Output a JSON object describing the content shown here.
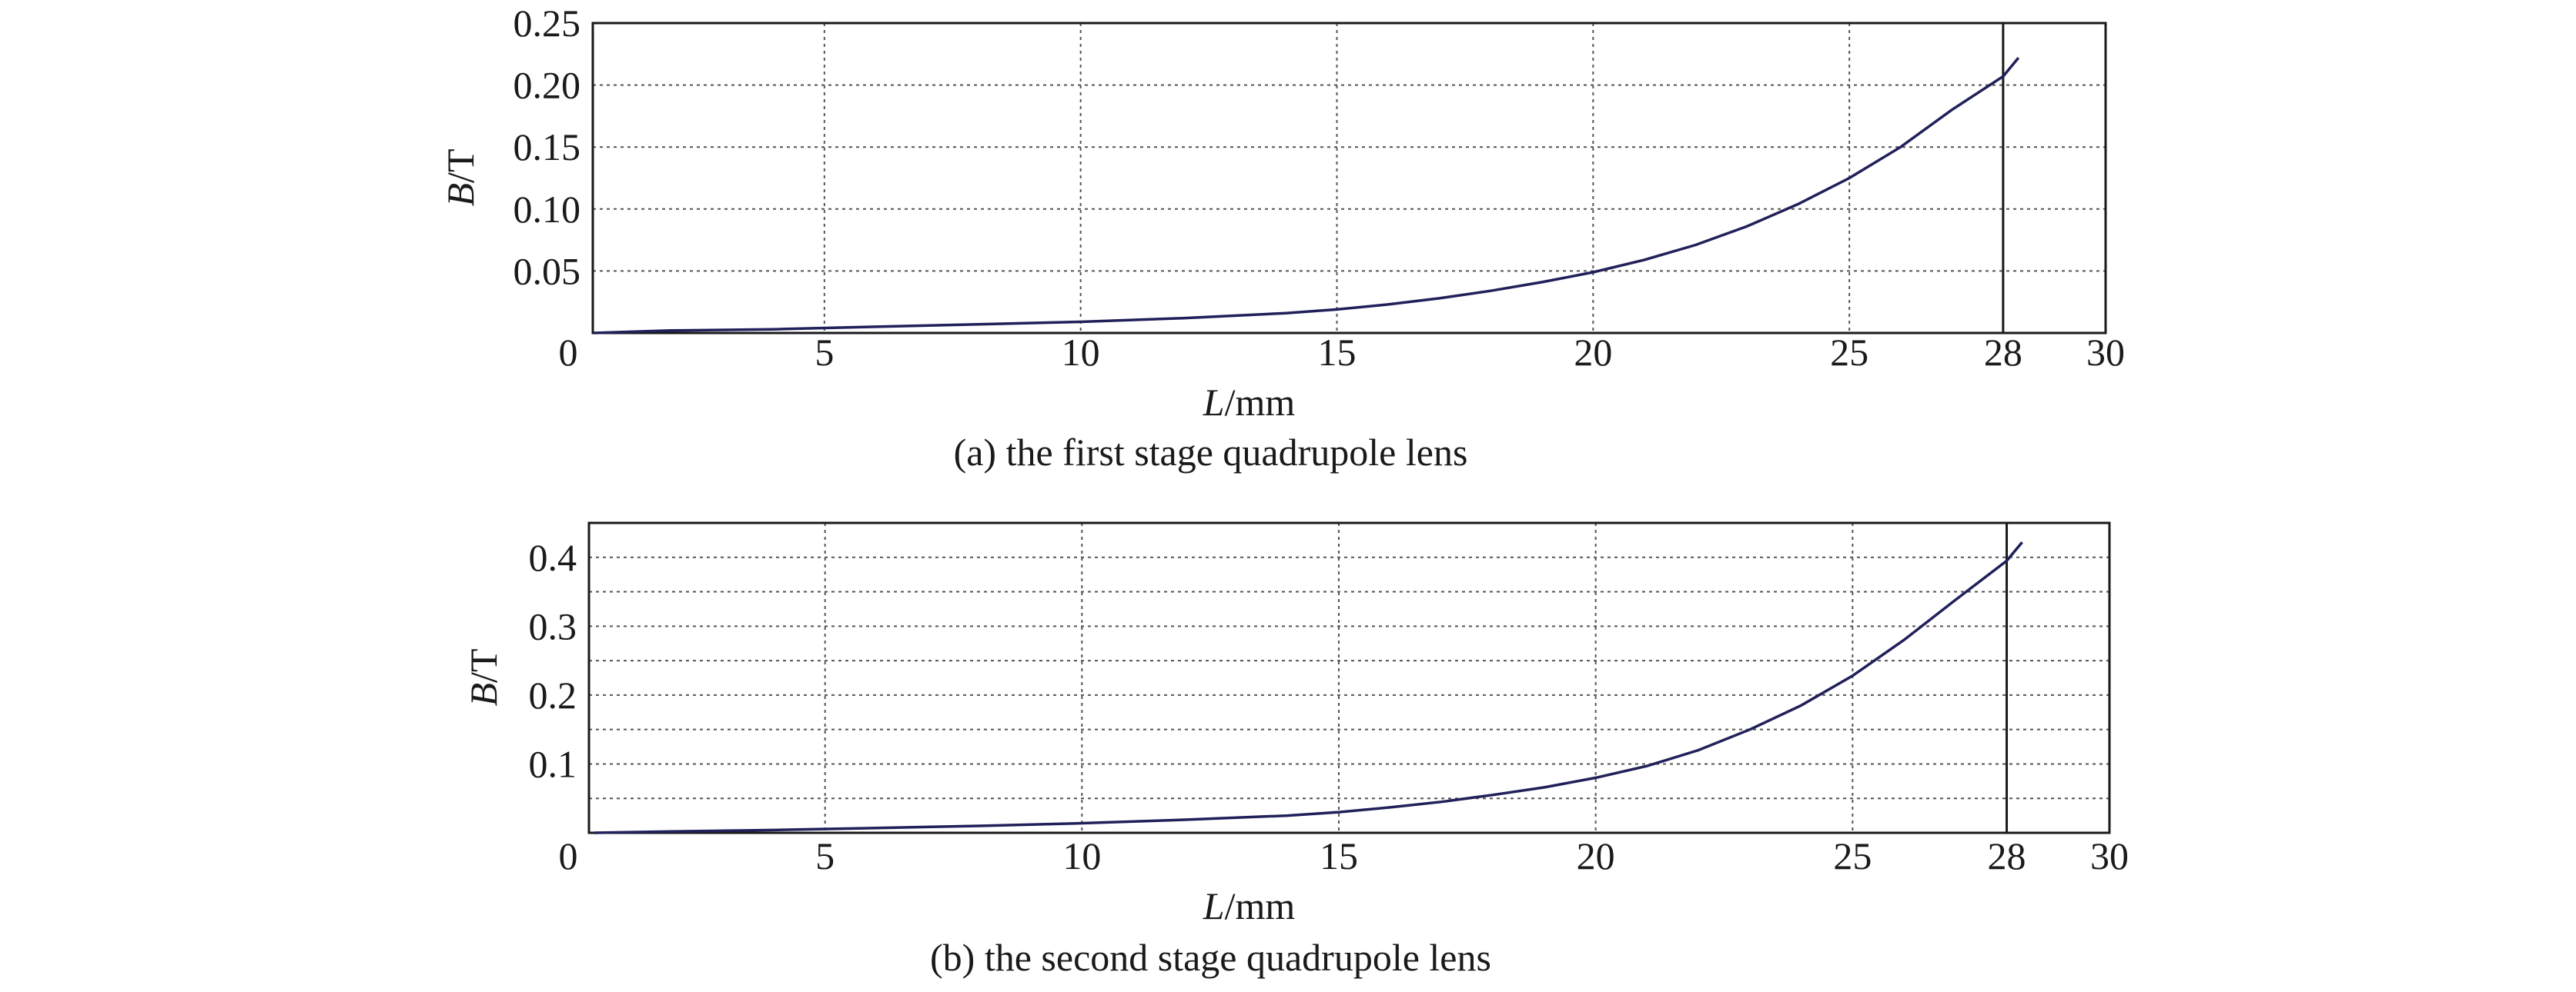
{
  "chart_data": [
    {
      "type": "line",
      "caption": "(a) the first stage quadrupole lens",
      "xlabel": {
        "var": "L",
        "unit": "/mm"
      },
      "ylabel": {
        "var": "B",
        "unit": "/T"
      },
      "xlim": [
        0,
        30
      ],
      "ylim": [
        0,
        0.25
      ],
      "x_ticks": [
        0,
        5,
        10,
        15,
        20,
        25,
        28,
        30
      ],
      "x_tick_labels": [
        "0",
        "5",
        "10",
        "15",
        "20",
        "25",
        "28",
        "30"
      ],
      "x_gridlines": [
        5,
        10,
        15,
        20,
        25
      ],
      "y_ticks": [
        0.05,
        0.1,
        0.15,
        0.2,
        0.25
      ],
      "y_tick_labels": [
        "0.05",
        "0.10",
        "0.15",
        "0.20",
        "0.25"
      ],
      "y_gridlines": [
        0.05,
        0.1,
        0.15,
        0.2
      ],
      "vertical_marker": 28,
      "grid": true,
      "series": [
        {
          "color": "#20205a",
          "x": [
            0.5,
            2,
            4,
            6,
            8,
            10,
            12,
            14,
            15,
            16,
            17,
            18,
            19,
            20,
            21,
            22,
            23,
            24,
            25,
            26,
            27,
            28,
            28.3
          ],
          "y": [
            0.0,
            0.002,
            0.003,
            0.005,
            0.007,
            0.009,
            0.012,
            0.016,
            0.019,
            0.023,
            0.028,
            0.034,
            0.041,
            0.049,
            0.059,
            0.071,
            0.086,
            0.104,
            0.125,
            0.15,
            0.18,
            0.207,
            0.222
          ]
        }
      ]
    },
    {
      "type": "line",
      "caption": "(b) the second stage quadrupole lens",
      "xlabel": {
        "var": "L",
        "unit": "/mm"
      },
      "ylabel": {
        "var": "B",
        "unit": "/T"
      },
      "xlim": [
        0,
        30
      ],
      "ylim": [
        0,
        0.45
      ],
      "x_ticks": [
        0,
        5,
        10,
        15,
        20,
        25,
        28,
        30
      ],
      "x_tick_labels": [
        "0",
        "5",
        "10",
        "15",
        "20",
        "25",
        "28",
        "30"
      ],
      "x_gridlines": [
        5,
        10,
        15,
        20,
        25
      ],
      "y_ticks": [
        0.1,
        0.2,
        0.3,
        0.4
      ],
      "y_tick_labels": [
        "0.1",
        "0.2",
        "0.3",
        "0.4"
      ],
      "y_gridlines": [
        0.05,
        0.1,
        0.15,
        0.2,
        0.25,
        0.3,
        0.35,
        0.4
      ],
      "vertical_marker": 28,
      "grid": true,
      "series": [
        {
          "color": "#20205a",
          "x": [
            0.5,
            2,
            4,
            6,
            8,
            10,
            12,
            14,
            15,
            16,
            17,
            18,
            19,
            20,
            21,
            22,
            23,
            24,
            25,
            26,
            27,
            28,
            28.3
          ],
          "y": [
            0.0,
            0.002,
            0.004,
            0.007,
            0.01,
            0.014,
            0.019,
            0.025,
            0.03,
            0.037,
            0.045,
            0.055,
            0.066,
            0.08,
            0.097,
            0.12,
            0.15,
            0.185,
            0.228,
            0.28,
            0.338,
            0.395,
            0.422
          ]
        }
      ]
    }
  ]
}
